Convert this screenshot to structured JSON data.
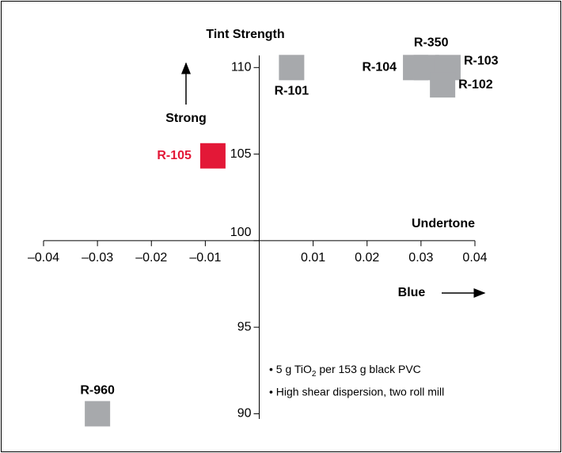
{
  "chart_data": {
    "type": "scatter",
    "title": "Tint Strength",
    "x_label": "Undertone",
    "annotations": {
      "up_arrow": "Strong",
      "right_arrow": "Blue"
    },
    "notes": [
      [
        "• 5 g TiO",
        "2",
        " per 153 g black PVC"
      ],
      [
        "• High shear dispersion, two roll mill"
      ]
    ],
    "xlim": [
      -0.04,
      0.04
    ],
    "xticks": [
      {
        "value": -0.04,
        "label": "–0.04"
      },
      {
        "value": -0.03,
        "label": "–0.03"
      },
      {
        "value": -0.02,
        "label": "–0.02"
      },
      {
        "value": -0.01,
        "label": "–0.01"
      },
      0.01,
      0.02,
      0.03,
      0.04
    ],
    "ylim": [
      89.7,
      110.7
    ],
    "yticks": [
      90,
      95,
      100,
      105,
      110
    ],
    "series": [
      {
        "name": "R-101",
        "color": "#a7a9ac",
        "x": [
          0.006
        ],
        "values": [
          110.0
        ]
      },
      {
        "name": "R-104",
        "color": "#a7a9ac",
        "x": [
          0.029
        ],
        "values": [
          110.0
        ]
      },
      {
        "name": "R-350",
        "color": "#a7a9ac",
        "x": [
          0.031
        ],
        "values": [
          110.0
        ]
      },
      {
        "name": "R-103",
        "color": "#a7a9ac",
        "x": [
          0.035
        ],
        "values": [
          110.0
        ]
      },
      {
        "name": "R-102",
        "color": "#a7a9ac",
        "x": [
          0.034
        ],
        "values": [
          109.0
        ]
      },
      {
        "name": "R-105",
        "color": "#e31837",
        "x": [
          -0.0086
        ],
        "values": [
          104.9
        ]
      },
      {
        "name": "R-960",
        "color": "#a7a9ac",
        "x": [
          -0.03
        ],
        "values": [
          90.0
        ]
      }
    ]
  }
}
